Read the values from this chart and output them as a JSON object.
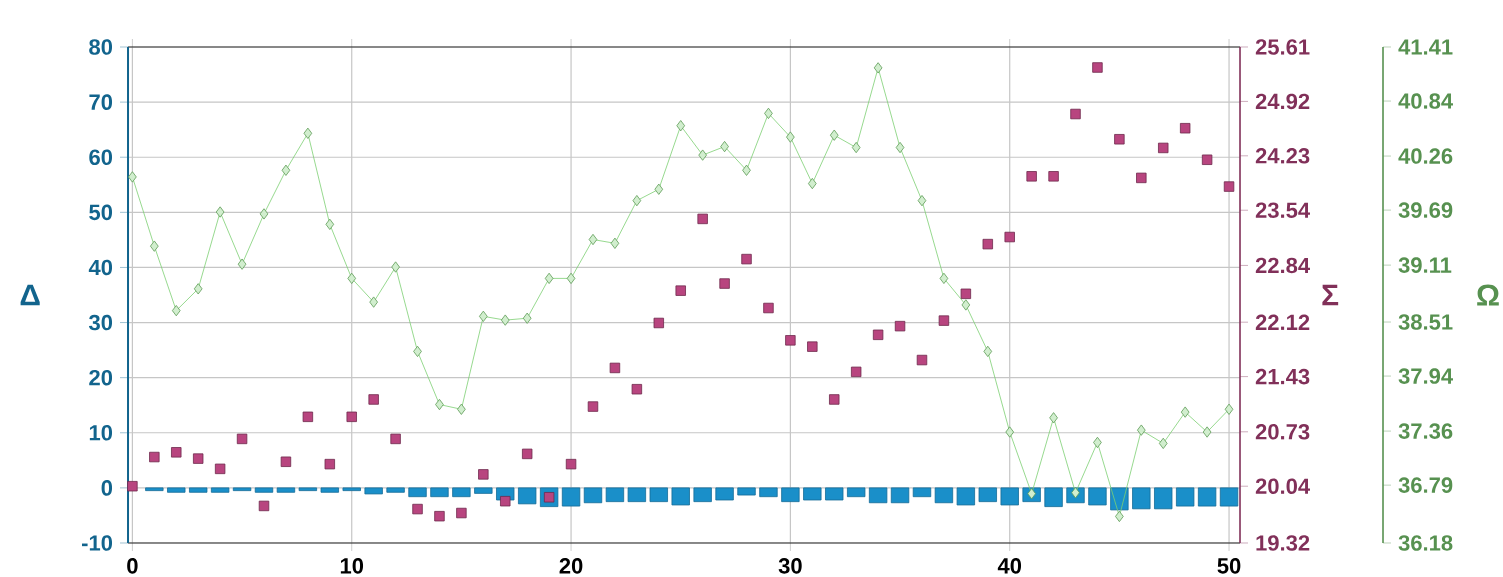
{
  "chart_data": {
    "type": "line",
    "xlabel": null,
    "ylabel": "Δ",
    "y2label": "Σ",
    "y3label": "Ω",
    "grid": true,
    "x": [
      0,
      1,
      2,
      3,
      4,
      5,
      6,
      7,
      8,
      9,
      10,
      11,
      12,
      13,
      14,
      15,
      16,
      17,
      18,
      19,
      20,
      21,
      22,
      23,
      24,
      25,
      26,
      27,
      28,
      29,
      30,
      31,
      32,
      33,
      34,
      35,
      36,
      37,
      38,
      39,
      40,
      41,
      42,
      43,
      44,
      45,
      46,
      47,
      48,
      49,
      50
    ],
    "xlim": [
      -0.2,
      50.5
    ],
    "xticks": [
      0,
      10,
      20,
      30,
      40,
      50
    ],
    "ylim": [
      -10,
      80
    ],
    "yticks": [
      -10,
      0,
      10,
      20,
      30,
      40,
      50,
      60,
      70,
      80
    ],
    "y2lim": [
      19.32,
      25.61
    ],
    "y2ticks": [
      19.32,
      20.04,
      20.73,
      21.43,
      22.12,
      22.84,
      23.54,
      24.23,
      24.92,
      25.61
    ],
    "y3lim": [
      36.18,
      41.41
    ],
    "y3ticks": [
      36.18,
      36.79,
      37.36,
      37.94,
      38.51,
      39.11,
      39.69,
      40.26,
      40.84,
      41.41
    ],
    "series": [
      {
        "type": "bar",
        "color": "#1a8fc9",
        "values": [
          null,
          -0.5,
          -0.8,
          -0.8,
          -0.8,
          -0.5,
          -0.8,
          -0.8,
          -0.5,
          -0.8,
          -0.5,
          -1.1,
          -0.8,
          -1.6,
          -1.6,
          -1.6,
          -1,
          -2.2,
          -2.9,
          -3.4,
          -3.3,
          -2.7,
          -2.5,
          -2.5,
          -2.5,
          -3.1,
          -2.5,
          -2.2,
          -1.3,
          -1.6,
          -2.5,
          -2.2,
          -2.2,
          -1.6,
          -2.7,
          -2.7,
          -1.6,
          -2.7,
          -3.1,
          -2.5,
          -3.1,
          -2.5,
          -3.4,
          -2.7,
          -3.1,
          -4,
          -3.8,
          -3.8,
          -3.3,
          -3.3,
          -3.3
        ]
      },
      {
        "type": "scatter",
        "axis": "y2",
        "marker": "square",
        "color": "#b8457f",
        "values": [
          20.04,
          20.41,
          20.47,
          20.39,
          20.26,
          20.64,
          19.79,
          20.35,
          20.92,
          20.32,
          20.92,
          21.14,
          20.64,
          19.75,
          19.66,
          19.7,
          20.19,
          19.85,
          20.45,
          19.9,
          20.32,
          21.05,
          21.54,
          21.27,
          22.11,
          22.52,
          23.43,
          22.61,
          22.92,
          22.3,
          21.89,
          21.81,
          21.14,
          21.49,
          21.96,
          22.07,
          21.64,
          22.14,
          22.48,
          23.11,
          23.2,
          23.97,
          23.97,
          24.76,
          25.35,
          24.44,
          23.95,
          24.33,
          24.58,
          24.18,
          23.84
        ]
      },
      {
        "axis": "y3",
        "marker": "diamond",
        "line_style": "solid",
        "color": "#7ccf72",
        "values": [
          40.04,
          39.31,
          38.63,
          38.86,
          39.67,
          39.12,
          39.65,
          40.11,
          40.5,
          39.54,
          38.97,
          38.72,
          39.09,
          38.2,
          37.64,
          37.59,
          38.57,
          38.53,
          38.55,
          38.97,
          38.97,
          39.38,
          39.34,
          39.79,
          39.91,
          40.58,
          40.27,
          40.36,
          40.11,
          40.71,
          40.46,
          39.97,
          40.48,
          40.35,
          41.19,
          40.35,
          39.79,
          38.97,
          38.69,
          38.2,
          37.35,
          36.7,
          37.5,
          36.71,
          37.24,
          36.46,
          37.37,
          37.23,
          37.56,
          37.35,
          37.59
        ]
      }
    ]
  }
}
